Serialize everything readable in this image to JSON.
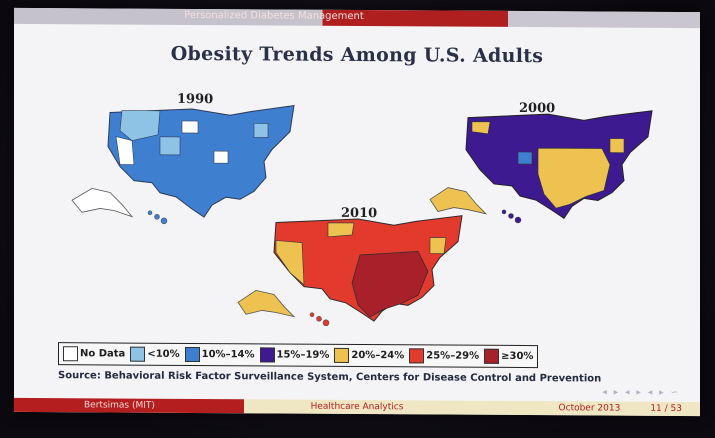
{
  "slide": {
    "header_text": "Personalized Diabetes Management",
    "title": "Obesity Trends Among U.S. Adults",
    "maps": [
      {
        "year": "1990",
        "dominant_category": "10%–14%",
        "other_categories": [
          "<10%",
          "No Data"
        ]
      },
      {
        "year": "2000",
        "dominant_category": "15%–19%",
        "other_categories": [
          "20%–24%",
          "10%–14%"
        ]
      },
      {
        "year": "2010",
        "dominant_category": "25%–29%",
        "other_categories": [
          "20%–24%",
          "≥30%"
        ]
      }
    ],
    "legend": [
      {
        "label": "No Data",
        "color": "#ffffff"
      },
      {
        "label": "<10%",
        "color": "#8ec3e6"
      },
      {
        "label": "10%–14%",
        "color": "#3f7fd0"
      },
      {
        "label": "15%–19%",
        "color": "#3d1a8f"
      },
      {
        "label": "20%–24%",
        "color": "#edc251"
      },
      {
        "label": "25%–29%",
        "color": "#e23b2e"
      },
      {
        "label": "≥30%",
        "color": "#a8202a"
      }
    ],
    "source": "Source: Behavioral Risk Factor Surveillance System, Centers for Disease Control and Prevention"
  },
  "footer": {
    "author": "Bertsimas  (MIT)",
    "course": "Healthcare Analytics",
    "date": "October 2013",
    "page": "11 / 53"
  },
  "nav_icons": [
    "nav-arrows-icon"
  ]
}
